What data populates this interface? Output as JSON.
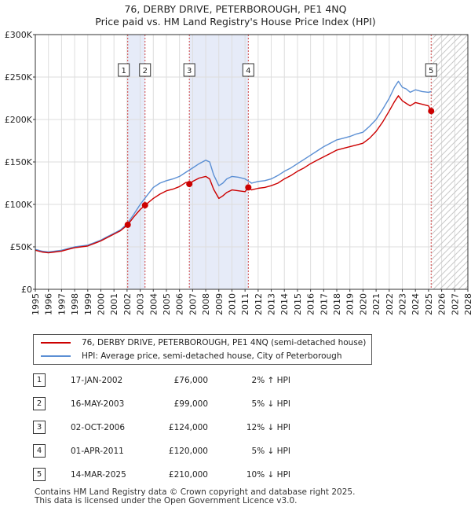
{
  "header": {
    "title": "76, DERBY DRIVE, PETERBOROUGH, PE1 4NQ",
    "subtitle": "Price paid vs. HM Land Registry's House Price Index (HPI)"
  },
  "legend": {
    "property_label": "76, DERBY DRIVE, PETERBOROUGH, PE1 4NQ (semi-detached house)",
    "hpi_label": "HPI: Average price, semi-detached house, City of Peterborough"
  },
  "colors": {
    "property": "#cc0000",
    "hpi": "#5b8fd4",
    "shade": "#e6ebf8",
    "grid": "#dddddd"
  },
  "transactions": [
    {
      "num": "1",
      "date": "17-JAN-2002",
      "price": "£76,000",
      "hpi": "2% ↑ HPI"
    },
    {
      "num": "2",
      "date": "16-MAY-2003",
      "price": "£99,000",
      "hpi": "5% ↓ HPI"
    },
    {
      "num": "3",
      "date": "02-OCT-2006",
      "price": "£124,000",
      "hpi": "12% ↓ HPI"
    },
    {
      "num": "4",
      "date": "01-APR-2011",
      "price": "£120,000",
      "hpi": "5% ↓ HPI"
    },
    {
      "num": "5",
      "date": "14-MAR-2025",
      "price": "£210,000",
      "hpi": "10% ↓ HPI"
    }
  ],
  "footer": {
    "line1": "Contains HM Land Registry data © Crown copyright and database right 2025.",
    "line2": "This data is licensed under the Open Government Licence v3.0."
  },
  "chart_data": {
    "type": "line",
    "title": "76, DERBY DRIVE, PETERBOROUGH, PE1 4NQ",
    "xlim": [
      1995,
      2028
    ],
    "ylim": [
      0,
      300000
    ],
    "x_ticks": [
      1995,
      1996,
      1997,
      1998,
      1999,
      2000,
      2001,
      2002,
      2003,
      2004,
      2005,
      2006,
      2007,
      2008,
      2009,
      2010,
      2011,
      2012,
      2013,
      2014,
      2015,
      2016,
      2017,
      2018,
      2019,
      2020,
      2021,
      2022,
      2023,
      2024,
      2025,
      2026,
      2027,
      2028
    ],
    "y_ticks": [
      0,
      50000,
      100000,
      150000,
      200000,
      250000,
      300000
    ],
    "y_tick_labels": [
      "£0",
      "£50K",
      "£100K",
      "£150K",
      "£200K",
      "£250K",
      "£300K"
    ],
    "shaded_ranges": [
      [
        2002.05,
        2003.37
      ],
      [
        2006.75,
        2011.25
      ]
    ],
    "forecast_start": 2025.2,
    "series": [
      {
        "name": "HPI: Average price, semi-detached house, City of Peterborough",
        "x": [
          1995.0,
          1995.5,
          1996.0,
          1996.5,
          1997.0,
          1997.5,
          1998.0,
          1998.5,
          1999.0,
          1999.5,
          2000.0,
          2000.5,
          2001.0,
          2001.5,
          2002.0,
          2002.5,
          2003.0,
          2003.5,
          2004.0,
          2004.5,
          2005.0,
          2005.5,
          2006.0,
          2006.5,
          2007.0,
          2007.5,
          2008.0,
          2008.3,
          2008.6,
          2009.0,
          2009.3,
          2009.6,
          2010.0,
          2010.5,
          2011.0,
          2011.3,
          2011.5,
          2012.0,
          2012.5,
          2013.0,
          2013.5,
          2014.0,
          2014.5,
          2015.0,
          2015.5,
          2016.0,
          2016.5,
          2017.0,
          2017.5,
          2018.0,
          2018.5,
          2019.0,
          2019.5,
          2020.0,
          2020.5,
          2021.0,
          2021.5,
          2022.0,
          2022.4,
          2022.7,
          2023.0,
          2023.3,
          2023.6,
          2024.0,
          2024.5,
          2025.0,
          2025.2
        ],
        "y": [
          47000,
          45000,
          44000,
          45000,
          46000,
          48000,
          50000,
          51000,
          52000,
          55000,
          58000,
          62000,
          66000,
          70000,
          77000,
          88000,
          100000,
          110000,
          120000,
          125000,
          128000,
          130000,
          133000,
          138000,
          143000,
          148000,
          152000,
          150000,
          135000,
          122000,
          125000,
          130000,
          133000,
          132000,
          130000,
          127000,
          125000,
          127000,
          128000,
          130000,
          134000,
          139000,
          143000,
          148000,
          153000,
          158000,
          163000,
          168000,
          172000,
          176000,
          178000,
          180000,
          183000,
          185000,
          192000,
          200000,
          212000,
          225000,
          238000,
          245000,
          238000,
          236000,
          232000,
          235000,
          233000,
          232000,
          233000
        ]
      },
      {
        "name": "76, DERBY DRIVE, PETERBOROUGH, PE1 4NQ (semi-detached house)",
        "x": [
          1995.0,
          1995.5,
          1996.0,
          1996.5,
          1997.0,
          1997.5,
          1998.0,
          1998.5,
          1999.0,
          1999.5,
          2000.0,
          2000.5,
          2001.0,
          2001.5,
          2002.05,
          2002.5,
          2003.0,
          2003.37,
          2004.0,
          2004.5,
          2005.0,
          2005.5,
          2006.0,
          2006.5,
          2006.75,
          2007.0,
          2007.5,
          2008.0,
          2008.3,
          2008.6,
          2009.0,
          2009.3,
          2009.6,
          2010.0,
          2010.5,
          2011.0,
          2011.25,
          2011.5,
          2012.0,
          2012.5,
          2013.0,
          2013.5,
          2014.0,
          2014.5,
          2015.0,
          2015.5,
          2016.0,
          2016.5,
          2017.0,
          2017.5,
          2018.0,
          2018.5,
          2019.0,
          2019.5,
          2020.0,
          2020.5,
          2021.0,
          2021.5,
          2022.0,
          2022.4,
          2022.7,
          2023.0,
          2023.3,
          2023.6,
          2024.0,
          2024.5,
          2025.0,
          2025.2
        ],
        "y": [
          46000,
          44000,
          43000,
          44000,
          45000,
          47000,
          49000,
          50000,
          51000,
          54000,
          57000,
          61000,
          65000,
          69000,
          76000,
          85000,
          94000,
          99000,
          107000,
          112000,
          116000,
          118000,
          121000,
          126000,
          124000,
          127000,
          131000,
          133000,
          130000,
          118000,
          107000,
          110000,
          114000,
          117000,
          116000,
          115000,
          120000,
          117000,
          119000,
          120000,
          122000,
          125000,
          130000,
          134000,
          139000,
          143000,
          148000,
          152000,
          156000,
          160000,
          164000,
          166000,
          168000,
          170000,
          172000,
          178000,
          186000,
          197000,
          210000,
          221000,
          228000,
          222000,
          219000,
          216000,
          220000,
          218000,
          216000,
          210000
        ]
      }
    ],
    "sale_points": [
      {
        "label": "1",
        "x": 2002.05,
        "y": 76000
      },
      {
        "label": "2",
        "x": 2003.37,
        "y": 99000
      },
      {
        "label": "3",
        "x": 2006.75,
        "y": 124000
      },
      {
        "label": "4",
        "x": 2011.25,
        "y": 120000
      },
      {
        "label": "5",
        "x": 2025.2,
        "y": 210000
      }
    ]
  }
}
